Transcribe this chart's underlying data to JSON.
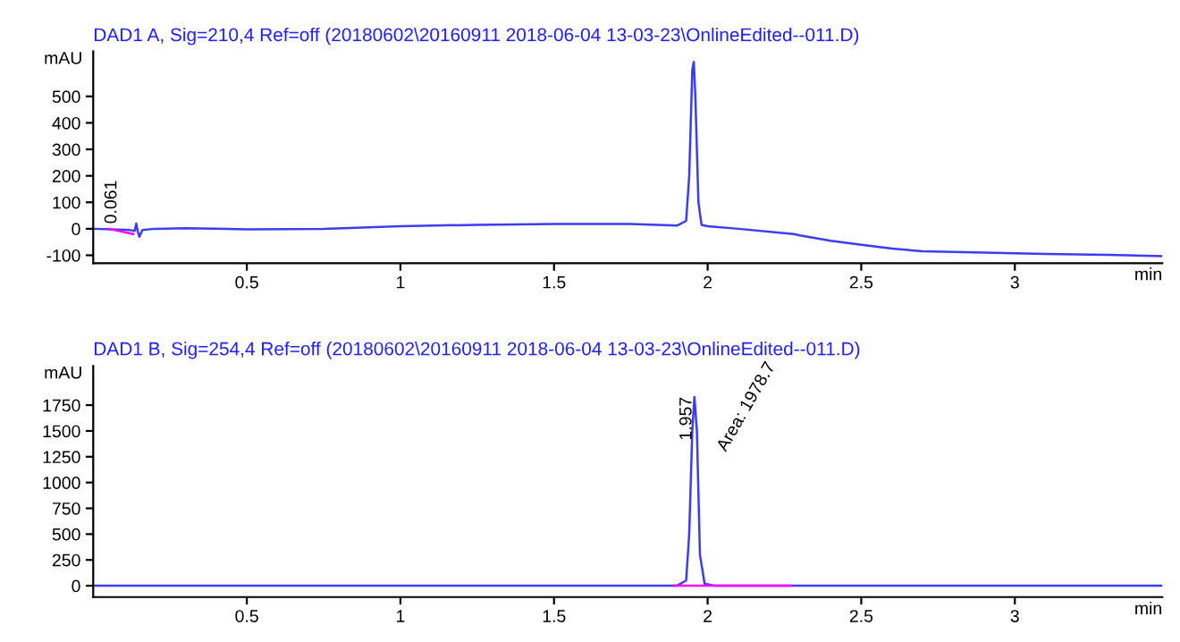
{
  "chart_data": [
    {
      "type": "line",
      "title": "DAD1 A, Sig=210,4 Ref=off (20180602\\20160911 2018-06-04 13-03-23\\OnlineEdited--011.D)",
      "xlabel": "min",
      "ylabel": "mAU",
      "xlim": [
        0,
        3.48
      ],
      "xticks": [
        0.5,
        1,
        1.5,
        2,
        2.5,
        3
      ],
      "ylim": [
        -130,
        670
      ],
      "yticks": [
        -100,
        0,
        100,
        200,
        300,
        400,
        500
      ],
      "series": [
        {
          "color": "#3c3cf0",
          "x": [
            0.0,
            0.06,
            0.12,
            0.135,
            0.14,
            0.145,
            0.15,
            0.16,
            0.2,
            0.3,
            0.5,
            0.75,
            1.0,
            1.25,
            1.5,
            1.75,
            1.9,
            1.93,
            1.94,
            1.95,
            1.955,
            1.96,
            1.97,
            1.98,
            2.0,
            2.1,
            2.28,
            2.3,
            2.4,
            2.5,
            2.6,
            2.7,
            2.9,
            3.1,
            3.3,
            3.48
          ],
          "values": [
            0,
            -2,
            -5,
            -8,
            20,
            -10,
            -30,
            -5,
            0,
            2,
            -2,
            0,
            10,
            15,
            18,
            18,
            12,
            30,
            200,
            600,
            630,
            500,
            100,
            15,
            10,
            0,
            -20,
            -25,
            -45,
            -60,
            -75,
            -85,
            -90,
            -95,
            -98,
            -103
          ]
        },
        {
          "color": "#ff00ff",
          "x": [
            0.05,
            0.13
          ],
          "values": [
            0,
            -20
          ]
        }
      ],
      "annotations": [
        {
          "text": "0.061",
          "x": 0.061,
          "y": 0
        }
      ]
    },
    {
      "type": "line",
      "title": "DAD1 B, Sig=254,4 Ref=off (20180602\\20160911 2018-06-04 13-03-23\\OnlineEdited--011.D)",
      "xlabel": "min",
      "ylabel": "mAU",
      "xlim": [
        0,
        3.48
      ],
      "xticks": [
        0.5,
        1,
        1.5,
        2,
        2.5,
        3
      ],
      "ylim": [
        -110,
        2130
      ],
      "yticks": [
        0,
        250,
        500,
        750,
        1000,
        1250,
        1500,
        1750
      ],
      "series": [
        {
          "color": "#3c3cf0",
          "x": [
            0.0,
            0.5,
            1.0,
            1.5,
            1.9,
            1.93,
            1.94,
            1.95,
            1.957,
            1.965,
            1.975,
            1.99,
            2.02,
            2.5,
            3.0,
            3.48
          ],
          "values": [
            0,
            0,
            0,
            0,
            0,
            50,
            500,
            1500,
            1830,
            1500,
            300,
            20,
            0,
            0,
            0,
            0
          ]
        },
        {
          "color": "#ff00ff",
          "x": [
            1.89,
            2.27
          ],
          "values": [
            0,
            0
          ]
        }
      ],
      "annotations": [
        {
          "text": "1.957",
          "x": 1.957,
          "y": 1830
        },
        {
          "text": "Area: 1978.7",
          "x": 1.975,
          "y": 1450
        }
      ]
    }
  ]
}
